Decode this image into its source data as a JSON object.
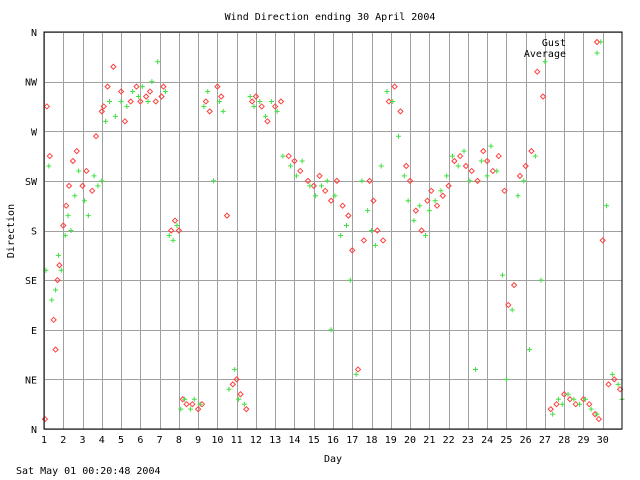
{
  "chart_data": {
    "type": "scatter",
    "title": "Wind Direction ending 30 April 2004",
    "xlabel": "Day",
    "ylabel": "Direction",
    "xlim": [
      1,
      31
    ],
    "ylim": [
      0,
      8
    ],
    "x_ticks": [
      "1",
      "2",
      "3",
      "4",
      "5",
      "6",
      "7",
      "8",
      "9",
      "10",
      "11",
      "12",
      "13",
      "14",
      "15",
      "16",
      "17",
      "18",
      "19",
      "20",
      "21",
      "22",
      "23",
      "24",
      "25",
      "26",
      "27",
      "28",
      "29",
      "30"
    ],
    "y_ticks": [
      "N",
      "NE",
      "E",
      "SE",
      "S",
      "SW",
      "W",
      "NW",
      "N"
    ],
    "grid": true,
    "legend_position": "top-right",
    "colors": {
      "gust": "#ff4040",
      "average": "#40e040",
      "grid": "#a0a0a0"
    },
    "series": [
      {
        "name": "Gust",
        "marker": "diamond",
        "points": [
          [
            1.05,
            0.2
          ],
          [
            1.15,
            6.5
          ],
          [
            1.3,
            5.5
          ],
          [
            1.5,
            2.2
          ],
          [
            1.6,
            1.6
          ],
          [
            1.7,
            3.0
          ],
          [
            1.8,
            3.3
          ],
          [
            2.0,
            4.1
          ],
          [
            2.15,
            4.5
          ],
          [
            2.3,
            4.9
          ],
          [
            2.5,
            5.4
          ],
          [
            2.7,
            5.6
          ],
          [
            3.0,
            4.9
          ],
          [
            3.2,
            5.2
          ],
          [
            3.5,
            4.8
          ],
          [
            3.7,
            5.9
          ],
          [
            4.0,
            6.4
          ],
          [
            4.1,
            6.5
          ],
          [
            4.3,
            6.9
          ],
          [
            4.6,
            7.3
          ],
          [
            5.0,
            6.8
          ],
          [
            5.2,
            6.2
          ],
          [
            5.5,
            6.6
          ],
          [
            5.8,
            6.9
          ],
          [
            6.0,
            6.6
          ],
          [
            6.3,
            6.7
          ],
          [
            6.5,
            6.8
          ],
          [
            6.8,
            6.6
          ],
          [
            7.1,
            6.7
          ],
          [
            7.2,
            6.9
          ],
          [
            7.6,
            4.0
          ],
          [
            7.8,
            4.2
          ],
          [
            8.0,
            4.0
          ],
          [
            8.2,
            0.6
          ],
          [
            8.4,
            0.5
          ],
          [
            8.7,
            0.5
          ],
          [
            9.0,
            0.4
          ],
          [
            9.2,
            0.5
          ],
          [
            9.4,
            6.6
          ],
          [
            9.6,
            6.4
          ],
          [
            10.0,
            6.9
          ],
          [
            10.2,
            6.7
          ],
          [
            10.5,
            4.3
          ],
          [
            10.8,
            0.9
          ],
          [
            11.0,
            1.0
          ],
          [
            11.2,
            0.7
          ],
          [
            11.5,
            0.4
          ],
          [
            11.8,
            6.6
          ],
          [
            12.0,
            6.7
          ],
          [
            12.3,
            6.5
          ],
          [
            12.6,
            6.2
          ],
          [
            13.0,
            6.5
          ],
          [
            13.3,
            6.6
          ],
          [
            13.7,
            5.5
          ],
          [
            14.0,
            5.4
          ],
          [
            14.3,
            5.2
          ],
          [
            14.7,
            5.0
          ],
          [
            15.0,
            4.9
          ],
          [
            15.3,
            5.1
          ],
          [
            15.6,
            4.8
          ],
          [
            15.9,
            4.6
          ],
          [
            16.2,
            5.0
          ],
          [
            16.5,
            4.5
          ],
          [
            16.8,
            4.3
          ],
          [
            17.0,
            3.6
          ],
          [
            17.3,
            1.2
          ],
          [
            17.6,
            3.8
          ],
          [
            17.9,
            5.0
          ],
          [
            18.1,
            4.6
          ],
          [
            18.3,
            4.0
          ],
          [
            18.6,
            3.8
          ],
          [
            18.9,
            6.6
          ],
          [
            19.2,
            6.9
          ],
          [
            19.5,
            6.4
          ],
          [
            19.8,
            5.3
          ],
          [
            20.0,
            5.0
          ],
          [
            20.3,
            4.4
          ],
          [
            20.6,
            4.0
          ],
          [
            20.9,
            4.6
          ],
          [
            21.1,
            4.8
          ],
          [
            21.4,
            4.5
          ],
          [
            21.7,
            4.7
          ],
          [
            22.0,
            4.9
          ],
          [
            22.3,
            5.4
          ],
          [
            22.6,
            5.5
          ],
          [
            22.9,
            5.3
          ],
          [
            23.2,
            5.2
          ],
          [
            23.5,
            5.0
          ],
          [
            23.8,
            5.6
          ],
          [
            24.0,
            5.4
          ],
          [
            24.3,
            5.2
          ],
          [
            24.6,
            5.5
          ],
          [
            24.9,
            4.8
          ],
          [
            25.1,
            2.5
          ],
          [
            25.4,
            2.9
          ],
          [
            25.7,
            5.1
          ],
          [
            26.0,
            5.3
          ],
          [
            26.3,
            5.6
          ],
          [
            26.6,
            7.2
          ],
          [
            26.9,
            6.7
          ],
          [
            27.3,
            0.4
          ],
          [
            27.6,
            0.5
          ],
          [
            28.0,
            0.7
          ],
          [
            28.3,
            0.6
          ],
          [
            28.6,
            0.5
          ],
          [
            29.0,
            0.6
          ],
          [
            29.3,
            0.5
          ],
          [
            29.6,
            0.3
          ],
          [
            29.8,
            0.2
          ],
          [
            30.0,
            3.8
          ],
          [
            30.3,
            0.9
          ],
          [
            30.6,
            1.0
          ],
          [
            30.9,
            0.8
          ]
        ]
      },
      {
        "name": "Average",
        "marker": "plus",
        "points": [
          [
            1.1,
            3.2
          ],
          [
            1.25,
            5.3
          ],
          [
            1.4,
            2.6
          ],
          [
            1.6,
            2.8
          ],
          [
            1.75,
            3.5
          ],
          [
            1.9,
            3.2
          ],
          [
            2.1,
            3.9
          ],
          [
            2.25,
            4.3
          ],
          [
            2.4,
            4.0
          ],
          [
            2.6,
            4.7
          ],
          [
            2.8,
            5.2
          ],
          [
            3.1,
            4.6
          ],
          [
            3.3,
            4.3
          ],
          [
            3.6,
            5.1
          ],
          [
            3.8,
            4.9
          ],
          [
            4.0,
            5.0
          ],
          [
            4.2,
            6.2
          ],
          [
            4.4,
            6.6
          ],
          [
            4.7,
            6.3
          ],
          [
            5.0,
            6.6
          ],
          [
            5.3,
            6.5
          ],
          [
            5.6,
            6.8
          ],
          [
            5.9,
            6.7
          ],
          [
            6.1,
            6.9
          ],
          [
            6.4,
            6.6
          ],
          [
            6.6,
            7.0
          ],
          [
            6.9,
            7.4
          ],
          [
            7.3,
            6.8
          ],
          [
            7.5,
            3.9
          ],
          [
            7.7,
            3.8
          ],
          [
            7.9,
            4.1
          ],
          [
            8.1,
            0.4
          ],
          [
            8.3,
            0.6
          ],
          [
            8.6,
            0.4
          ],
          [
            8.8,
            0.6
          ],
          [
            9.1,
            0.5
          ],
          [
            9.3,
            6.5
          ],
          [
            9.5,
            6.8
          ],
          [
            9.8,
            5.0
          ],
          [
            10.1,
            6.6
          ],
          [
            10.3,
            6.4
          ],
          [
            10.6,
            0.8
          ],
          [
            10.9,
            1.2
          ],
          [
            11.1,
            0.6
          ],
          [
            11.4,
            0.5
          ],
          [
            11.7,
            6.7
          ],
          [
            11.9,
            6.5
          ],
          [
            12.2,
            6.6
          ],
          [
            12.5,
            6.3
          ],
          [
            12.8,
            6.6
          ],
          [
            13.1,
            6.4
          ],
          [
            13.4,
            5.5
          ],
          [
            13.8,
            5.3
          ],
          [
            14.1,
            5.1
          ],
          [
            14.4,
            5.4
          ],
          [
            14.8,
            4.9
          ],
          [
            15.1,
            4.7
          ],
          [
            15.4,
            4.9
          ],
          [
            15.7,
            5.0
          ],
          [
            15.9,
            2.0
          ],
          [
            16.1,
            4.7
          ],
          [
            16.4,
            3.9
          ],
          [
            16.7,
            4.1
          ],
          [
            16.9,
            3.0
          ],
          [
            17.2,
            1.1
          ],
          [
            17.5,
            5.0
          ],
          [
            17.8,
            4.4
          ],
          [
            18.0,
            4.0
          ],
          [
            18.2,
            3.7
          ],
          [
            18.5,
            5.3
          ],
          [
            18.8,
            6.8
          ],
          [
            19.1,
            6.6
          ],
          [
            19.4,
            5.9
          ],
          [
            19.7,
            5.1
          ],
          [
            19.9,
            4.6
          ],
          [
            20.2,
            4.2
          ],
          [
            20.5,
            4.5
          ],
          [
            20.8,
            3.9
          ],
          [
            21.0,
            4.4
          ],
          [
            21.3,
            4.6
          ],
          [
            21.6,
            4.8
          ],
          [
            21.9,
            5.1
          ],
          [
            22.2,
            5.5
          ],
          [
            22.5,
            5.3
          ],
          [
            22.8,
            5.6
          ],
          [
            23.1,
            5.0
          ],
          [
            23.4,
            1.2
          ],
          [
            23.7,
            5.4
          ],
          [
            24.0,
            5.1
          ],
          [
            24.2,
            5.7
          ],
          [
            24.5,
            5.2
          ],
          [
            24.8,
            3.1
          ],
          [
            25.0,
            1.0
          ],
          [
            25.3,
            2.4
          ],
          [
            25.6,
            4.7
          ],
          [
            25.9,
            5.0
          ],
          [
            26.2,
            1.6
          ],
          [
            26.5,
            5.5
          ],
          [
            26.8,
            3.0
          ],
          [
            27.0,
            7.4
          ],
          [
            27.4,
            0.3
          ],
          [
            27.7,
            0.6
          ],
          [
            27.9,
            0.5
          ],
          [
            28.2,
            0.7
          ],
          [
            28.5,
            0.6
          ],
          [
            28.8,
            0.5
          ],
          [
            29.1,
            0.6
          ],
          [
            29.4,
            0.4
          ],
          [
            29.7,
            0.3
          ],
          [
            29.9,
            7.8
          ],
          [
            30.2,
            4.5
          ],
          [
            30.5,
            1.1
          ],
          [
            30.8,
            0.9
          ],
          [
            31.0,
            0.6
          ]
        ]
      }
    ]
  },
  "timestamp": "Sat May 01 00:20:48 2004"
}
